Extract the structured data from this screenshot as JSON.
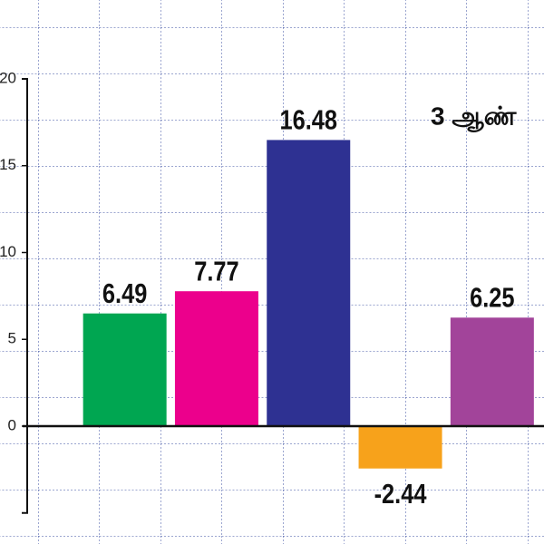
{
  "chart_data": {
    "type": "bar",
    "annotation": "3 ஆண்",
    "categories": [
      null,
      null,
      null,
      null,
      null
    ],
    "values": [
      6.49,
      7.77,
      16.48,
      -2.44,
      6.25
    ],
    "colors": [
      "#00a651",
      "#ec008c",
      "#2e3192",
      "#f7a21b",
      "#a2449a"
    ],
    "ylim": [
      -5,
      20
    ],
    "yticks": [
      0,
      5,
      10,
      15,
      20
    ]
  }
}
